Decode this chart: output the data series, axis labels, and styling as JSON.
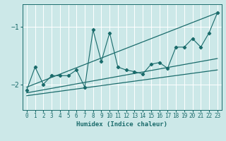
{
  "xlabel": "Humidex (Indice chaleur)",
  "xlim": [
    -0.5,
    23.5
  ],
  "ylim": [
    -2.45,
    -0.6
  ],
  "yticks": [
    -2,
    -1
  ],
  "xticks": [
    0,
    1,
    2,
    3,
    4,
    5,
    6,
    7,
    8,
    9,
    10,
    11,
    12,
    13,
    14,
    15,
    16,
    17,
    18,
    19,
    20,
    21,
    22,
    23
  ],
  "bg_color": "#cce8e8",
  "line_color": "#1a6b6b",
  "grid_color": "#ffffff",
  "main_x": [
    0,
    1,
    2,
    3,
    4,
    5,
    6,
    7,
    8,
    9,
    10,
    11,
    12,
    13,
    14,
    15,
    16,
    17,
    18,
    19,
    20,
    21,
    22,
    23
  ],
  "main_y": [
    -2.1,
    -1.7,
    -2.0,
    -1.85,
    -1.85,
    -1.85,
    -1.75,
    -2.05,
    -1.05,
    -1.6,
    -1.1,
    -1.7,
    -1.75,
    -1.78,
    -1.82,
    -1.65,
    -1.62,
    -1.72,
    -1.35,
    -1.35,
    -1.2,
    -1.35,
    -1.1,
    -0.75
  ],
  "line1_x": [
    0,
    23
  ],
  "line1_y": [
    -2.05,
    -0.75
  ],
  "line2_x": [
    0,
    23
  ],
  "line2_y": [
    -2.15,
    -1.55
  ],
  "line3_x": [
    0,
    23
  ],
  "line3_y": [
    -2.2,
    -1.75
  ]
}
